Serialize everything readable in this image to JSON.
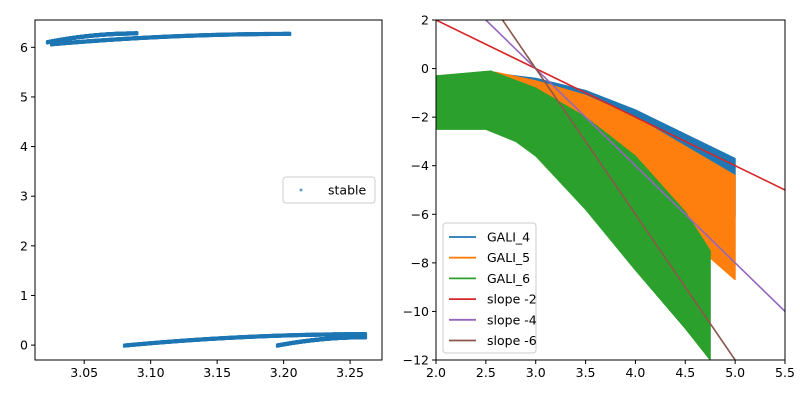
{
  "chart_data": [
    {
      "type": "scatter",
      "xlim": [
        3.013,
        3.274
      ],
      "ylim": [
        -0.3,
        6.55
      ],
      "x_ticks": [
        3.05,
        3.1,
        3.15,
        3.2,
        3.25
      ],
      "x_tick_labels": [
        "3.05",
        "3.10",
        "3.15",
        "3.20",
        "3.25"
      ],
      "y_ticks": [
        0,
        1,
        2,
        3,
        4,
        5,
        6
      ],
      "y_tick_labels": [
        "0",
        "1",
        "2",
        "3",
        "4",
        "5",
        "6"
      ],
      "grid": false,
      "legend_position": "center-right",
      "series": [
        {
          "name": "stable",
          "color": "#1f77b4",
          "marker": "dot",
          "bands": [
            {
              "x_start": 3.022,
              "x_end": 3.09,
              "y_start": 6.1,
              "y_end": 6.28,
              "thickness": 0.04
            },
            {
              "x_start": 3.025,
              "x_end": 3.205,
              "y_start": 6.06,
              "y_end": 6.27,
              "thickness": 0.04
            },
            {
              "x_start": 3.08,
              "x_end": 3.262,
              "y_start": -0.01,
              "y_end": 0.22,
              "thickness": 0.04
            },
            {
              "x_start": 3.195,
              "x_end": 3.262,
              "y_start": -0.01,
              "y_end": 0.16,
              "thickness": 0.04
            }
          ]
        }
      ]
    },
    {
      "type": "line",
      "xlim": [
        2.0,
        5.5
      ],
      "ylim": [
        -12,
        2
      ],
      "x_ticks": [
        2.0,
        2.5,
        3.0,
        3.5,
        4.0,
        4.5,
        5.0,
        5.5
      ],
      "x_tick_labels": [
        "2.0",
        "2.5",
        "3.0",
        "3.5",
        "4.0",
        "4.5",
        "5.0",
        "5.5"
      ],
      "y_ticks": [
        2,
        0,
        -2,
        -4,
        -6,
        -8,
        -10,
        -12
      ],
      "y_tick_labels": [
        "2",
        "0",
        "−2",
        "−4",
        "−6",
        "−8",
        "−10",
        "−12"
      ],
      "grid": false,
      "legend_position": "lower-left",
      "series": [
        {
          "name": "GALI_4",
          "color": "#1f77b4",
          "kind": "oscillating",
          "envelope_upper": [
            [
              2.0,
              -0.3
            ],
            [
              2.6,
              -0.2
            ],
            [
              3.0,
              -0.4
            ],
            [
              3.5,
              -0.9
            ],
            [
              4.0,
              -1.7
            ],
            [
              4.5,
              -2.7
            ],
            [
              5.0,
              -3.7
            ]
          ],
          "envelope_lower": [
            [
              2.0,
              -1.2
            ],
            [
              2.5,
              -0.6
            ],
            [
              3.0,
              -0.9
            ],
            [
              3.5,
              -1.5
            ],
            [
              4.0,
              -2.6
            ],
            [
              4.5,
              -4.0
            ],
            [
              5.0,
              -6.1
            ]
          ]
        },
        {
          "name": "GALI_5",
          "color": "#ff7f0e",
          "kind": "oscillating",
          "envelope_upper": [
            [
              2.0,
              -0.3
            ],
            [
              2.6,
              -0.15
            ],
            [
              3.0,
              -0.5
            ],
            [
              3.5,
              -1.1
            ],
            [
              4.0,
              -2.0
            ],
            [
              4.5,
              -3.2
            ],
            [
              5.0,
              -4.4
            ]
          ],
          "envelope_lower": [
            [
              2.0,
              -1.5
            ],
            [
              2.5,
              -1.0
            ],
            [
              3.0,
              -1.8
            ],
            [
              3.5,
              -3.3
            ],
            [
              4.0,
              -5.0
            ],
            [
              4.5,
              -6.9
            ],
            [
              5.0,
              -8.7
            ]
          ]
        },
        {
          "name": "GALI_6",
          "color": "#2ca02c",
          "kind": "oscillating",
          "envelope_upper": [
            [
              2.0,
              -0.3
            ],
            [
              2.55,
              -0.1
            ],
            [
              3.0,
              -0.8
            ],
            [
              3.5,
              -2.0
            ],
            [
              4.0,
              -3.6
            ],
            [
              4.5,
              -5.9
            ],
            [
              4.75,
              -7.5
            ]
          ],
          "envelope_lower": [
            [
              2.0,
              -2.5
            ],
            [
              2.5,
              -2.5
            ],
            [
              2.8,
              -3.0
            ],
            [
              3.0,
              -3.6
            ],
            [
              3.5,
              -5.8
            ],
            [
              4.0,
              -8.3
            ],
            [
              4.5,
              -10.7
            ],
            [
              4.75,
              -12.0
            ]
          ]
        },
        {
          "name": "slope -2",
          "color": "#d62728",
          "kind": "line",
          "points": [
            [
              2.0,
              2.0
            ],
            [
              5.5,
              -5.0
            ]
          ]
        },
        {
          "name": "slope -4",
          "color": "#9467bd",
          "kind": "line",
          "points": [
            [
              2.5,
              2.0
            ],
            [
              5.5,
              -10.0
            ]
          ]
        },
        {
          "name": "slope -6",
          "color": "#8c564b",
          "kind": "line",
          "points": [
            [
              2.667,
              2.0
            ],
            [
              5.0,
              -12.0
            ]
          ]
        }
      ]
    }
  ]
}
